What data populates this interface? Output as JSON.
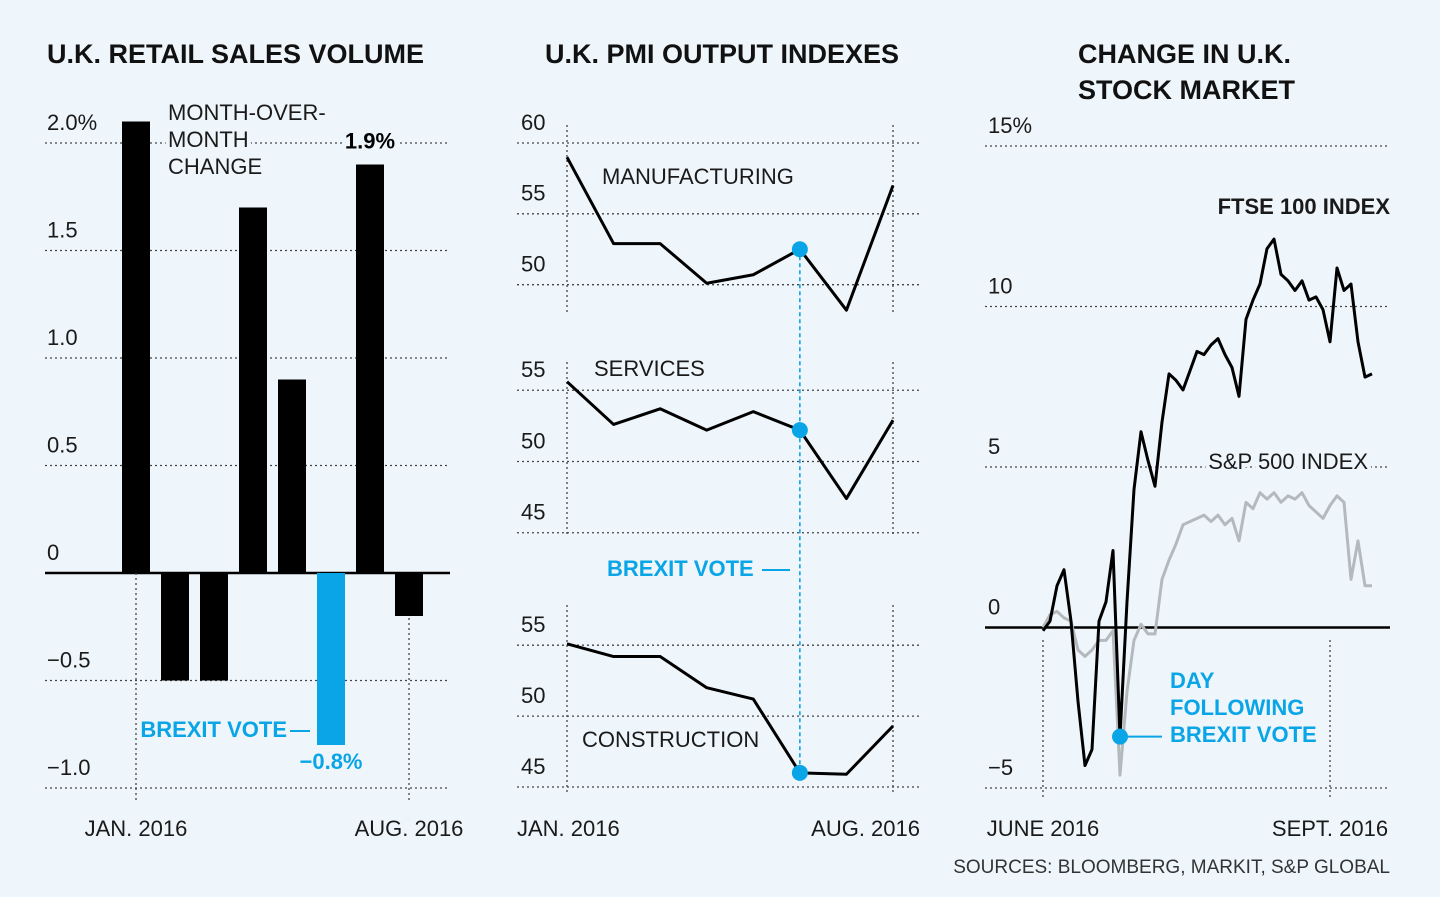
{
  "chart_data": [
    {
      "type": "bar",
      "title": "U.K. RETAIL SALES VOLUME",
      "note": [
        "MONTH-OVER-",
        "MONTH",
        "CHANGE"
      ],
      "categories": [
        "JAN. 2016",
        null,
        null,
        null,
        null,
        null,
        null,
        "AUG. 2016"
      ],
      "values": [
        2.1,
        -0.5,
        -0.5,
        1.7,
        0.9,
        -0.8,
        1.9,
        -0.2
      ],
      "value_labels": [
        null,
        null,
        null,
        null,
        null,
        "−0.8%",
        "1.9%",
        null
      ],
      "colors": [
        "#000000",
        "#000000",
        "#000000",
        "#000000",
        "#000000",
        "#0aa5e6",
        "#000000",
        "#000000"
      ],
      "highlight_index": 5,
      "highlight_label": "BREXIT VOTE",
      "highlight_color": "#0aa5e6",
      "ylim": [
        -1,
        2.1
      ],
      "yticks": [
        {
          "value": 2,
          "label": "2.0%"
        },
        {
          "value": 1.5,
          "label": "1.5"
        },
        {
          "value": 1,
          "label": "1.0"
        },
        {
          "value": 0.5,
          "label": "0.5"
        },
        0,
        {
          "value": -0.5,
          "label": "−0.5"
        },
        {
          "value": -1,
          "label": "−1.0"
        }
      ],
      "grid": true
    },
    {
      "type": "line",
      "title": "U.K. PMI OUTPUT INDEXES",
      "categories": [
        null,
        null,
        null,
        null,
        null,
        null,
        null,
        null
      ],
      "series": [
        {
          "name": "MANUFACTURING",
          "color": "#000000",
          "highlight_index": 5,
          "values": [
            59.0,
            52.9,
            52.9,
            50.1,
            50.7,
            52.5,
            48.2,
            57.0
          ]
        }
      ],
      "highlight_color": "#0aa5e6",
      "ylim": [
        48,
        60
      ],
      "yticks": [
        50,
        55,
        60
      ],
      "grid": true
    },
    {
      "type": "line",
      "categories": [
        null,
        null,
        null,
        null,
        null,
        null,
        null,
        null
      ],
      "series": [
        {
          "name": "SERVICES",
          "color": "#000000",
          "highlight_index": 5,
          "values": [
            55.6,
            52.6,
            53.7,
            52.2,
            53.5,
            52.2,
            47.4,
            52.9
          ]
        }
      ],
      "highlight_color": "#0aa5e6",
      "annotation": "BREXIT VOTE",
      "ylim": [
        44,
        56
      ],
      "yticks": [
        45,
        50,
        55
      ],
      "grid": true
    },
    {
      "type": "line",
      "categories": [
        "JAN. 2016",
        null,
        null,
        null,
        null,
        null,
        null,
        "AUG. 2016"
      ],
      "series": [
        {
          "name": "CONSTRUCTION",
          "color": "#000000",
          "highlight_index": 5,
          "values": [
            55.1,
            54.2,
            54.2,
            52.0,
            51.2,
            46.0,
            45.9,
            49.3
          ]
        }
      ],
      "highlight_color": "#0aa5e6",
      "ylim": [
        45,
        56
      ],
      "yticks": [
        45,
        50,
        55
      ],
      "grid": true
    },
    {
      "type": "line",
      "title": [
        "CHANGE IN U.K.",
        "STOCK MARKET"
      ],
      "categories": [
        "JUNE 2016",
        null,
        null,
        null,
        null,
        null,
        null,
        null,
        null,
        null,
        null,
        null,
        null,
        null,
        null,
        null,
        null,
        null,
        null,
        null,
        null,
        null,
        null,
        null,
        null,
        null,
        null,
        null,
        null,
        null,
        null,
        null,
        null,
        null,
        null,
        null,
        null,
        null,
        null,
        null,
        null,
        "SEPT. 2016",
        null,
        null,
        null,
        null,
        null,
        null
      ],
      "series": [
        {
          "name": "FTSE 100 INDEX",
          "color": "#000000",
          "highlight_index": 11,
          "values": [
            -0.1,
            0.2,
            1.3,
            1.8,
            0.2,
            -2.3,
            -4.3,
            -3.8,
            0.2,
            0.8,
            2.4,
            -3.4,
            0.8,
            4.3,
            6.1,
            5.2,
            4.4,
            6.4,
            7.9,
            7.7,
            7.4,
            8.0,
            8.6,
            8.5,
            8.8,
            9.0,
            8.5,
            8.1,
            7.2,
            9.6,
            10.2,
            10.7,
            11.8,
            12.1,
            11.0,
            10.8,
            10.5,
            10.8,
            10.2,
            10.3,
            9.9,
            8.9,
            11.2,
            10.5,
            10.7,
            8.9,
            7.8,
            7.9
          ]
        },
        {
          "name": "S&P 500 INDEX",
          "color": "#b4b9bd",
          "values": [
            0.0,
            0.4,
            0.5,
            0.3,
            0.2,
            -0.7,
            -0.9,
            -0.7,
            -0.4,
            -0.4,
            -0.1,
            -4.6,
            -2.0,
            -0.4,
            0.1,
            -0.2,
            -0.2,
            1.5,
            2.1,
            2.6,
            3.2,
            3.3,
            3.4,
            3.5,
            3.3,
            3.5,
            3.2,
            3.4,
            2.7,
            3.9,
            3.7,
            4.2,
            4.0,
            4.2,
            3.9,
            4.1,
            4.0,
            4.2,
            3.8,
            3.6,
            3.4,
            3.8,
            4.1,
            3.9,
            1.5,
            2.7,
            1.3,
            1.3
          ]
        }
      ],
      "highlight_color": "#0aa5e6",
      "annotation": [
        "DAY",
        "FOLLOWING",
        "BREXIT VOTE"
      ],
      "ylim": [
        -5,
        15
      ],
      "yticks": [
        {
          "value": 15,
          "label": "15%"
        },
        10,
        5,
        0,
        {
          "value": -5,
          "label": "−5"
        }
      ],
      "grid": true,
      "source": "SOURCES: BLOOMBERG, MARKIT, S&P GLOBAL"
    }
  ]
}
